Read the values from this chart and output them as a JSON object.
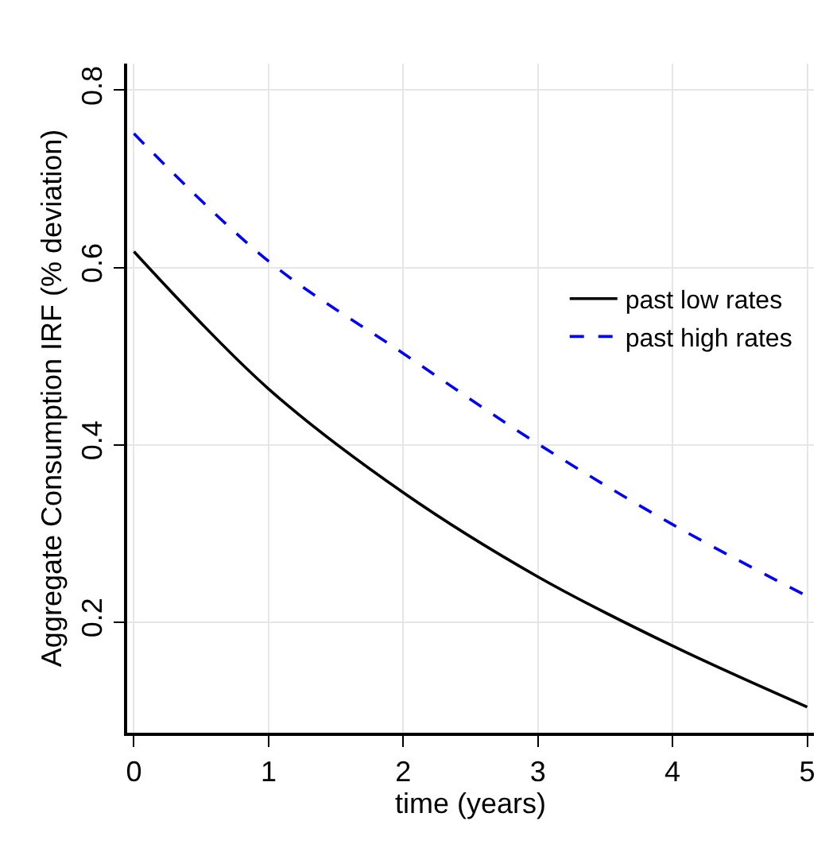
{
  "chart_data": {
    "type": "line",
    "xlabel": "time (years)",
    "ylabel": "Aggregate Consumption IRF (% deviation)",
    "x": [
      0,
      1,
      2,
      3,
      4,
      5
    ],
    "series": [
      {
        "name": "past low rates",
        "color": "#000000",
        "line_style": "solid",
        "values": [
          0.618,
          0.463,
          0.346,
          0.251,
          0.173,
          0.104
        ]
      },
      {
        "name": "past high rates",
        "color": "#0000ff",
        "line_style": "dashed",
        "values": [
          0.751,
          0.607,
          0.503,
          0.401,
          0.31,
          0.229
        ]
      }
    ],
    "xlim": [
      -0.05,
      5.05
    ],
    "ylim": [
      0.075,
      0.83
    ],
    "xticks": [
      0,
      1,
      2,
      3,
      4,
      5
    ],
    "yticks": [
      0.2,
      0.4,
      0.6,
      0.8
    ],
    "grid": true,
    "legend": "right",
    "marker": "none"
  }
}
